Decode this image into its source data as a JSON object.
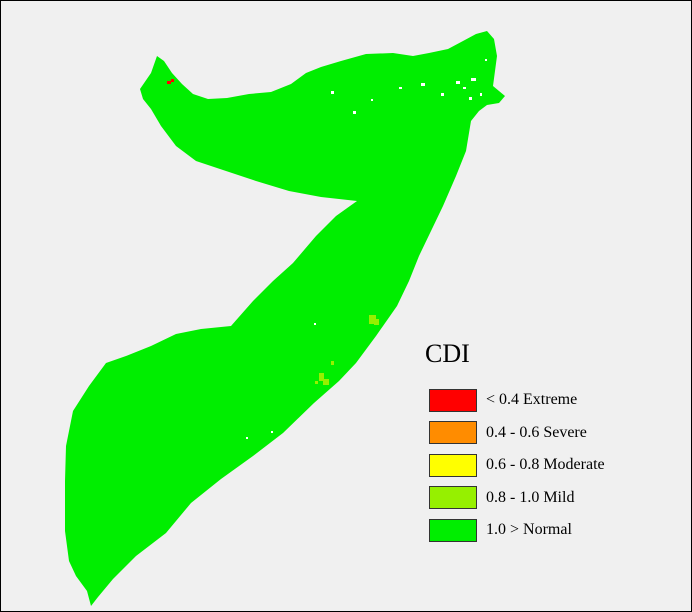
{
  "legend": {
    "title": "CDI",
    "items": [
      {
        "label": "< 0.4 Extreme",
        "color": "#ff0000"
      },
      {
        "label": "0.4 - 0.6 Severe",
        "color": "#ff8c00"
      },
      {
        "label": "0.6 - 0.8 Moderate",
        "color": "#ffff00"
      },
      {
        "label": "0.8 - 1.0 Mild",
        "color": "#96f000"
      },
      {
        "label": "1.0 > Normal",
        "color": "#00ee00"
      }
    ]
  },
  "colors": {
    "background": "#f0f0f0",
    "land": "#00ee00",
    "nodata": "#ffffff"
  }
}
